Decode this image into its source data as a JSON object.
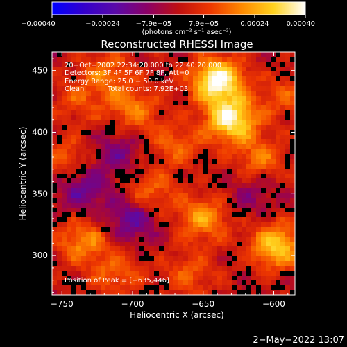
{
  "chart_data": {
    "type": "heatmap",
    "title": "Reconstructed RHESSI Image",
    "xlabel": "Heliocentric X (arcsec)",
    "ylabel": "Heliocentric Y (arcsec)",
    "xlim": [
      -757,
      -585
    ],
    "ylim": [
      268,
      465
    ],
    "x_ticks": [
      -750,
      -700,
      -650,
      -600
    ],
    "x_tick_labels": [
      "−750",
      "−700",
      "−650",
      "−600"
    ],
    "y_ticks": [
      300,
      350,
      400,
      450
    ],
    "y_tick_labels": [
      "300",
      "350",
      "400",
      "450"
    ],
    "colorbar": {
      "range": [
        -0.0004,
        0.0004
      ],
      "ticks": [
        -0.0004,
        -0.00024,
        -7.9e-05,
        7.9e-05,
        0.00024,
        0.0004
      ],
      "tick_labels": [
        "−0.00040",
        "−0.00024",
        "−7.9e−05",
        "7.9e−05",
        "0.00024",
        "0.00040"
      ],
      "units": "(photons cm⁻² s⁻¹ asec⁻²)",
      "colors": [
        "#0000ff",
        "#3300cc",
        "#5a0aa8",
        "#8b0066",
        "#c01010",
        "#ee3800",
        "#ff8a00",
        "#ffd21e",
        "#ffffff"
      ]
    },
    "annotations": {
      "time_range": "20−Oct−2002 22:34:20.000 to 22:40:20.000",
      "detectors": "Detectors: 3F 4F 5F 6F 7F 8F, Att=0",
      "energy_range": "Energy Range: 25.0 − 50.0 keV",
      "clean": "Clean",
      "total_counts": "Total counts: 7.92E+03",
      "peak_position": "Position of Peak = [−635,446]"
    },
    "sources": [
      {
        "x": -640,
        "y": 442,
        "value": 0.0004
      },
      {
        "x": -630,
        "y": 410,
        "value": 0.00036
      },
      {
        "x": -598,
        "y": 308,
        "value": 0.0003
      },
      {
        "x": -650,
        "y": 330,
        "value": 0.00022
      },
      {
        "x": -700,
        "y": 418,
        "value": 0.00018
      },
      {
        "x": -735,
        "y": 312,
        "value": 0.0002
      },
      {
        "x": -718,
        "y": 448,
        "value": 0.00016
      },
      {
        "x": -688,
        "y": 350,
        "value": 0.00017
      },
      {
        "x": -745,
        "y": 378,
        "value": 0.00014
      },
      {
        "x": -610,
        "y": 378,
        "value": 0.00016
      },
      {
        "x": -712,
        "y": 285,
        "value": 0.00015
      },
      {
        "x": -670,
        "y": 390,
        "value": 0.00014
      },
      {
        "x": -592,
        "y": 428,
        "value": 0.00012
      },
      {
        "x": -660,
        "y": 285,
        "value": 0.00013
      },
      {
        "x": -738,
        "y": 425,
        "value": 0.00011
      },
      {
        "x": -700,
        "y": 330,
        "value": -0.0002
      },
      {
        "x": -735,
        "y": 355,
        "value": -0.00018
      },
      {
        "x": -712,
        "y": 385,
        "value": -0.00013
      },
      {
        "x": -615,
        "y": 350,
        "value": -0.0001
      }
    ]
  },
  "footer": {
    "timestamp": "2−May−2022 13:07"
  }
}
